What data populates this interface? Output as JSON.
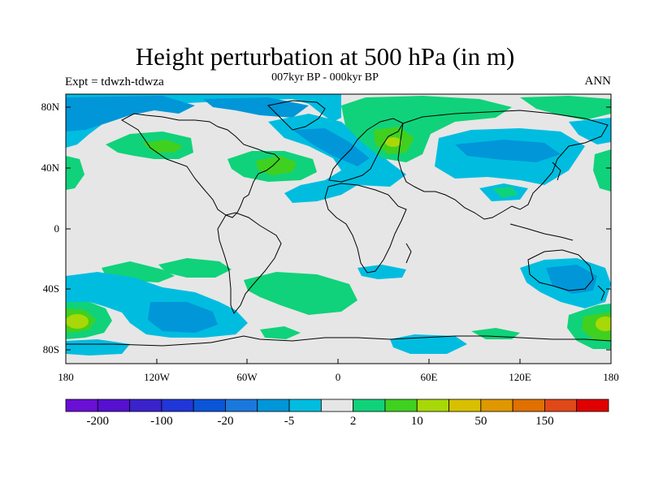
{
  "header": {
    "title": "Height perturbation at 500 hPa (in m)",
    "subtitle": "007kyr BP - 000kyr BP",
    "left_label": "Expt = tdwzh-tdwza",
    "right_label": "ANN"
  },
  "axes": {
    "lon_ticks": [
      "180",
      "120W",
      "60W",
      "0",
      "60E",
      "120E",
      "180"
    ],
    "lat_ticks": [
      "80N",
      "40N",
      "0",
      "40S",
      "80S"
    ]
  },
  "colorbar": {
    "colors": [
      "#6a0fd6",
      "#5510d0",
      "#3a22cc",
      "#2036d8",
      "#0a55d8",
      "#1a78dc",
      "#0096d8",
      "#00bde0",
      "#e6e6e6",
      "#10d27a",
      "#40d020",
      "#a8d808",
      "#d8c000",
      "#e09800",
      "#e07000",
      "#e04818",
      "#e00000"
    ],
    "labels": [
      "-200",
      "-100",
      "-20",
      "-5",
      "2",
      "10",
      "50",
      "150"
    ]
  },
  "colors": {
    "background_field": "#e6e6e6",
    "neg_light": "#00bde0",
    "neg_mid": "#0096d8",
    "neg_dark": "#1a78dc",
    "pos_light": "#10d27a",
    "pos_mid": "#40d020",
    "pos_strong": "#a8d808"
  }
}
